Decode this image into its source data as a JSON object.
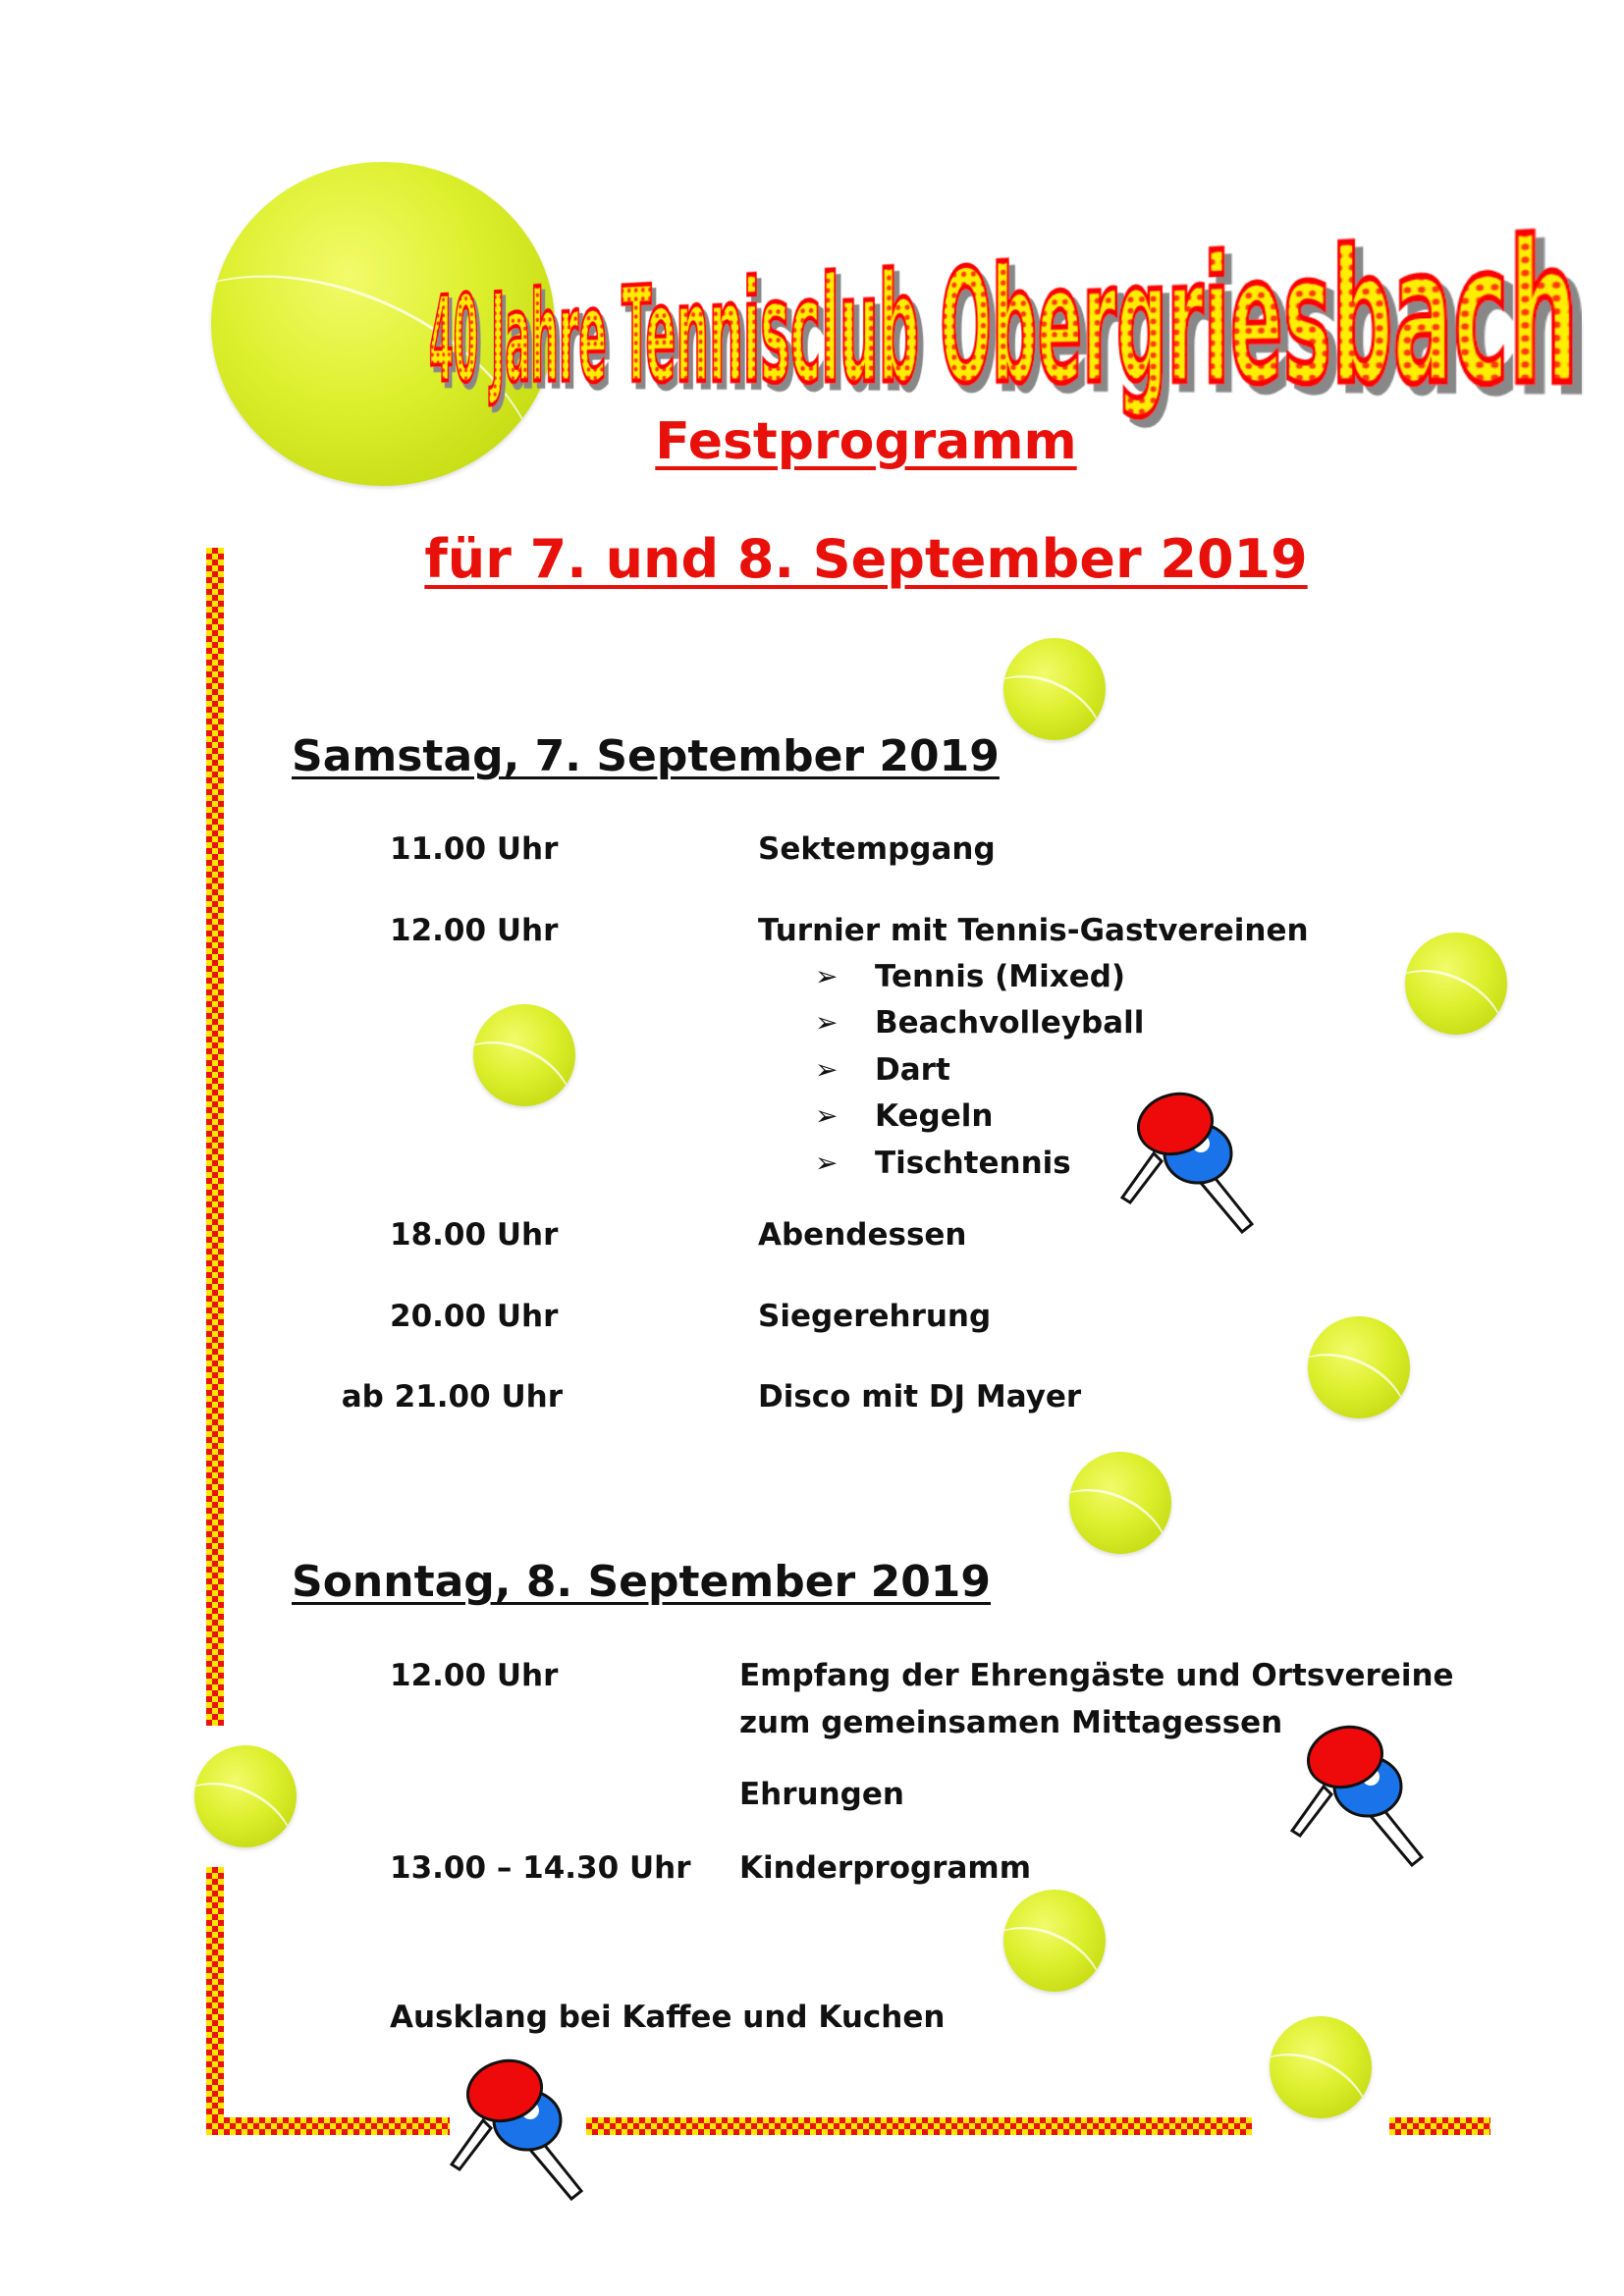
{
  "header": {
    "logo_title": "40 Jahre Tennisclub Obergriesbach",
    "subtitle": "Festprogramm",
    "dates": "für 7. und 8. September 2019"
  },
  "colors": {
    "accent_red": "#e8100a",
    "border_yellow": "#ffe600",
    "ball": "#dcef2c"
  },
  "saturday": {
    "heading": "Samstag, 7. September 2019",
    "rows": [
      {
        "time": "11.00 Uhr",
        "activity": "Sektempgang"
      },
      {
        "time": "12.00 Uhr",
        "activity": "Turnier mit Tennis-Gastvereinen"
      },
      {
        "time": "18.00 Uhr",
        "activity": "Abendessen"
      },
      {
        "time": "20.00 Uhr",
        "activity": "Siegerehrung"
      },
      {
        "time": "ab 21.00 Uhr",
        "activity": "Disco mit DJ Mayer"
      }
    ],
    "tournament_items": [
      "Tennis (Mixed)",
      "Beachvolleyball",
      "Dart",
      "Kegeln",
      "Tischtennis"
    ],
    "bullet_icon": "arrow-bullet-icon"
  },
  "sunday": {
    "heading": "Sonntag, 8. September 2019",
    "rows": [
      {
        "time": "12.00 Uhr",
        "activity": "Empfang der Ehrengäste und Ortsvereine",
        "activity_line2": "zum gemeinsamen Mittagessen"
      },
      {
        "activity": "Ehrungen"
      },
      {
        "time": "13.00 – 14.30 Uhr",
        "activity": "Kinderprogramm"
      }
    ],
    "closing": "Ausklang bei Kaffee und Kuchen"
  }
}
